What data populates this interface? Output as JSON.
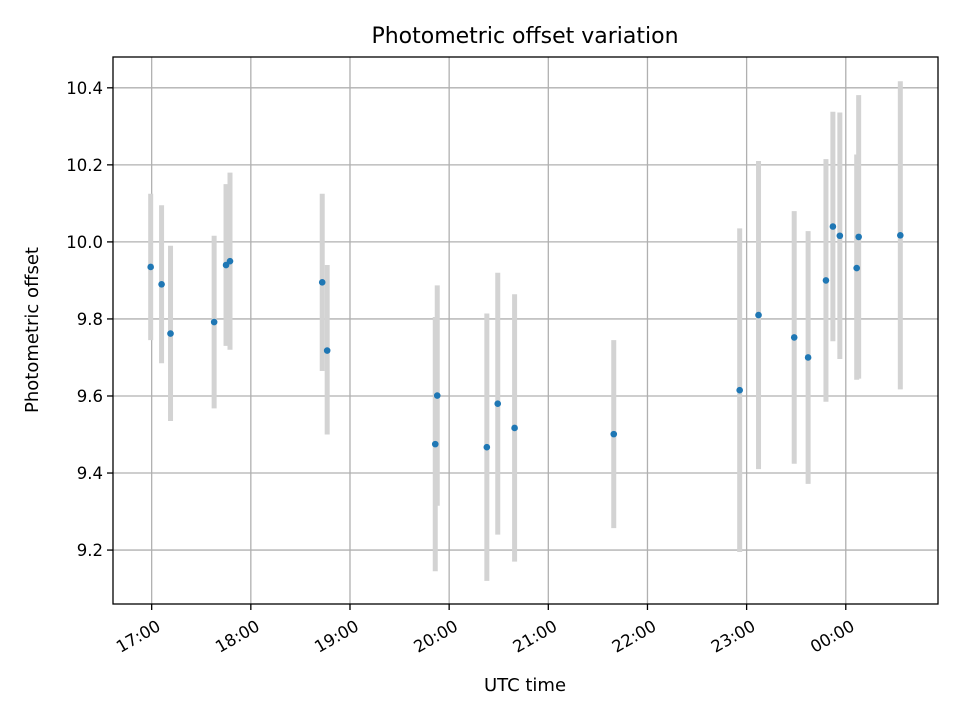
{
  "chart_data": {
    "type": "scatter",
    "title": "Photometric offset variation",
    "xlabel": "UTC time",
    "ylabel": "Photometric offset",
    "x_unit": "hours (UTC clock time, continuing past midnight)",
    "xlim": [
      16.61,
      24.93
    ],
    "ylim": [
      9.06,
      10.48
    ],
    "x_ticks": [
      17,
      18,
      19,
      20,
      21,
      22,
      23,
      24
    ],
    "x_tick_labels": [
      "17:00",
      "18:00",
      "19:00",
      "20:00",
      "21:00",
      "22:00",
      "23:00",
      "00:00"
    ],
    "y_ticks": [
      9.2,
      9.4,
      9.6,
      9.8,
      10.0,
      10.2,
      10.4
    ],
    "y_tick_labels": [
      "9.2",
      "9.4",
      "9.6",
      "9.8",
      "10.0",
      "10.2",
      "10.4"
    ],
    "grid": true,
    "marker_color": "#1f77b4",
    "errorbar_color": "#d3d3d3",
    "points": [
      {
        "x": 16.99,
        "y": 9.935,
        "low": 9.745,
        "high": 10.125
      },
      {
        "x": 17.1,
        "y": 9.89,
        "low": 9.685,
        "high": 10.095
      },
      {
        "x": 17.19,
        "y": 9.762,
        "low": 9.535,
        "high": 9.99
      },
      {
        "x": 17.63,
        "y": 9.792,
        "low": 9.568,
        "high": 10.016
      },
      {
        "x": 17.75,
        "y": 9.94,
        "low": 9.73,
        "high": 10.15
      },
      {
        "x": 17.79,
        "y": 9.95,
        "low": 9.72,
        "high": 10.18
      },
      {
        "x": 18.72,
        "y": 9.895,
        "low": 9.665,
        "high": 10.125
      },
      {
        "x": 18.77,
        "y": 9.718,
        "low": 9.5,
        "high": 9.94
      },
      {
        "x": 19.86,
        "y": 9.475,
        "low": 9.145,
        "high": 9.805
      },
      {
        "x": 19.88,
        "y": 9.601,
        "low": 9.315,
        "high": 9.887
      },
      {
        "x": 20.38,
        "y": 9.467,
        "low": 9.12,
        "high": 9.814
      },
      {
        "x": 20.49,
        "y": 9.58,
        "low": 9.24,
        "high": 9.92
      },
      {
        "x": 20.66,
        "y": 9.517,
        "low": 9.17,
        "high": 9.864
      },
      {
        "x": 21.66,
        "y": 9.501,
        "low": 9.257,
        "high": 9.745
      },
      {
        "x": 22.93,
        "y": 9.615,
        "low": 9.195,
        "high": 10.035
      },
      {
        "x": 23.12,
        "y": 9.81,
        "low": 9.41,
        "high": 10.21
      },
      {
        "x": 23.48,
        "y": 9.752,
        "low": 9.424,
        "high": 10.08
      },
      {
        "x": 23.62,
        "y": 9.7,
        "low": 9.372,
        "high": 10.028
      },
      {
        "x": 23.8,
        "y": 9.9,
        "low": 9.585,
        "high": 10.215
      },
      {
        "x": 23.87,
        "y": 10.04,
        "low": 9.742,
        "high": 10.338
      },
      {
        "x": 23.94,
        "y": 10.016,
        "low": 9.696,
        "high": 10.336
      },
      {
        "x": 24.11,
        "y": 9.932,
        "low": 9.642,
        "high": 10.227
      },
      {
        "x": 24.13,
        "y": 10.013,
        "low": 9.645,
        "high": 10.381
      },
      {
        "x": 24.55,
        "y": 10.017,
        "low": 9.617,
        "high": 10.417
      }
    ]
  }
}
